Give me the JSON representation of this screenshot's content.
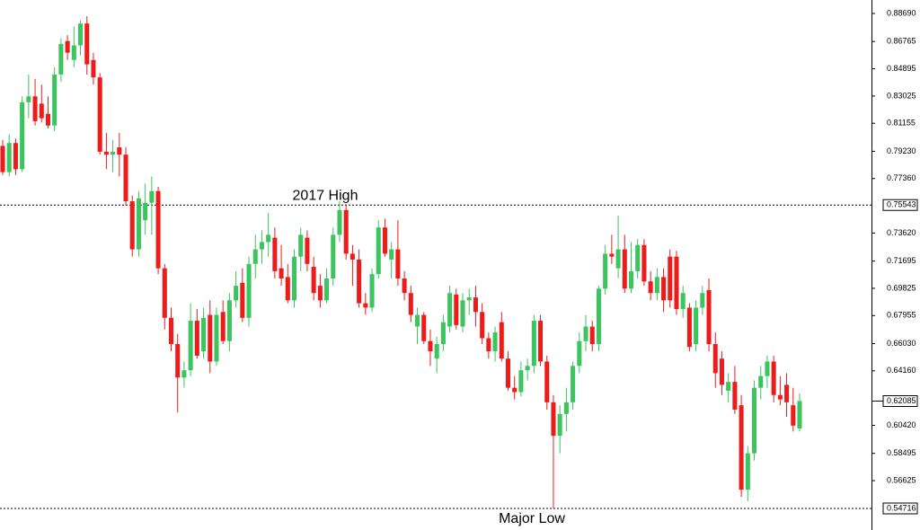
{
  "chart_data": {
    "type": "candlestick",
    "up_color": "#3cc45e",
    "down_color": "#ee1b1b",
    "ylim": [
      0.53236,
      0.89615
    ],
    "yticks": [
      {
        "value": 0.8869,
        "label": "0.88690"
      },
      0.86765,
      0.84895,
      0.83025,
      0.81155,
      {
        "value": 0.7923,
        "label": "0.79230"
      },
      {
        "value": 0.7736,
        "label": "0.77360"
      },
      {
        "value": 0.7362,
        "label": "0.73620"
      },
      0.71695,
      0.69825,
      0.67955,
      {
        "value": 0.6603,
        "label": "0.66030"
      },
      {
        "value": 0.6416,
        "label": "0.64160"
      },
      {
        "value": 0.6042,
        "label": "0.60420"
      },
      0.58495,
      0.56625
    ],
    "levels": [
      {
        "text": "2017 High",
        "value": 0.75543
      },
      {
        "text": "Major Low",
        "value": 0.54716
      }
    ],
    "last_price": 0.62085,
    "open": [
      0.796,
      0.778,
      0.798,
      0.78,
      0.826,
      0.83,
      0.825,
      0.818,
      0.81,
      0.845,
      0.868,
      0.855,
      0.865,
      0.88,
      0.855,
      0.843,
      0.792,
      0.79,
      0.795,
      0.79,
      0.758,
      0.725,
      0.745,
      0.757,
      0.765,
      0.712,
      0.678,
      0.66,
      0.637,
      0.642,
      0.676,
      0.655,
      0.68,
      0.648,
      0.682,
      0.662,
      0.69,
      0.702,
      0.678,
      0.715,
      0.725,
      0.73,
      0.733,
      0.712,
      0.706,
      0.69,
      0.72,
      0.733,
      0.713,
      0.7,
      0.69,
      0.705,
      0.735,
      0.752,
      0.722,
      0.718,
      0.688,
      0.685,
      0.708,
      0.74,
      0.718,
      0.725,
      0.705,
      0.695,
      0.672,
      0.68,
      0.662,
      0.65,
      0.66,
      0.672,
      0.694,
      0.672,
      0.69,
      0.692,
      0.682,
      0.664,
      0.655,
      0.675,
      0.65,
      0.63,
      0.627,
      0.642,
      0.645,
      0.676,
      0.648,
      0.62,
      0.597,
      0.612,
      0.62,
      0.645,
      0.662,
      0.672,
      0.66,
      0.698,
      0.722,
      0.712,
      0.725,
      0.698,
      0.71,
      0.728,
      0.703,
      0.695,
      0.706,
      0.72,
      0.72,
      0.684,
      0.685,
      0.66,
      0.685,
      0.697,
      0.66,
      0.65,
      0.628,
      0.634,
      0.618,
      0.56,
      0.585,
      0.63,
      0.638,
      0.648,
      0.625,
      0.632,
      0.618,
      0.602
    ],
    "high": [
      0.8,
      0.804,
      0.801,
      0.83,
      0.845,
      0.842,
      0.838,
      0.83,
      0.85,
      0.87,
      0.872,
      0.878,
      0.882,
      0.885,
      0.86,
      0.846,
      0.805,
      0.8,
      0.805,
      0.795,
      0.762,
      0.765,
      0.77,
      0.775,
      0.768,
      0.715,
      0.685,
      0.667,
      0.648,
      0.688,
      0.684,
      0.685,
      0.69,
      0.685,
      0.69,
      0.695,
      0.71,
      0.712,
      0.72,
      0.735,
      0.738,
      0.75,
      0.74,
      0.728,
      0.715,
      0.725,
      0.74,
      0.738,
      0.72,
      0.708,
      0.712,
      0.74,
      0.758,
      0.756,
      0.728,
      0.725,
      0.695,
      0.712,
      0.745,
      0.746,
      0.73,
      0.745,
      0.71,
      0.7,
      0.685,
      0.682,
      0.67,
      0.665,
      0.68,
      0.7,
      0.698,
      0.695,
      0.698,
      0.7,
      0.688,
      0.668,
      0.672,
      0.682,
      0.655,
      0.638,
      0.648,
      0.65,
      0.68,
      0.68,
      0.652,
      0.625,
      0.618,
      0.63,
      0.648,
      0.668,
      0.68,
      0.676,
      0.7,
      0.728,
      0.735,
      0.748,
      0.735,
      0.73,
      0.732,
      0.732,
      0.71,
      0.712,
      0.712,
      0.725,
      0.724,
      0.7,
      0.688,
      0.69,
      0.7,
      0.705,
      0.668,
      0.655,
      0.64,
      0.645,
      0.625,
      0.59,
      0.635,
      0.645,
      0.652,
      0.652,
      0.638,
      0.64,
      0.63,
      0.626
    ],
    "low": [
      0.776,
      0.775,
      0.776,
      0.778,
      0.815,
      0.81,
      0.812,
      0.808,
      0.806,
      0.84,
      0.855,
      0.85,
      0.858,
      0.845,
      0.838,
      0.79,
      0.78,
      0.778,
      0.775,
      0.755,
      0.72,
      0.72,
      0.735,
      0.735,
      0.708,
      0.67,
      0.655,
      0.613,
      0.63,
      0.638,
      0.65,
      0.65,
      0.64,
      0.645,
      0.66,
      0.655,
      0.685,
      0.675,
      0.672,
      0.705,
      0.715,
      0.72,
      0.705,
      0.7,
      0.688,
      0.685,
      0.71,
      0.71,
      0.69,
      0.685,
      0.688,
      0.7,
      0.73,
      0.718,
      0.7,
      0.685,
      0.68,
      0.682,
      0.705,
      0.72,
      0.705,
      0.7,
      0.69,
      0.675,
      0.66,
      0.66,
      0.645,
      0.64,
      0.655,
      0.668,
      0.67,
      0.668,
      0.68,
      0.672,
      0.66,
      0.65,
      0.648,
      0.648,
      0.628,
      0.622,
      0.624,
      0.635,
      0.64,
      0.645,
      0.615,
      0.547,
      0.585,
      0.6,
      0.615,
      0.64,
      0.655,
      0.655,
      0.655,
      0.694,
      0.715,
      0.705,
      0.695,
      0.695,
      0.705,
      0.7,
      0.69,
      0.69,
      0.682,
      0.685,
      0.68,
      0.678,
      0.655,
      0.655,
      0.68,
      0.655,
      0.63,
      0.625,
      0.62,
      0.612,
      0.555,
      0.552,
      0.58,
      0.622,
      0.63,
      0.62,
      0.618,
      0.61,
      0.6,
      0.6
    ],
    "close": [
      0.778,
      0.798,
      0.78,
      0.826,
      0.83,
      0.813,
      0.815,
      0.81,
      0.845,
      0.866,
      0.86,
      0.865,
      0.88,
      0.852,
      0.843,
      0.792,
      0.79,
      0.792,
      0.79,
      0.758,
      0.725,
      0.76,
      0.757,
      0.765,
      0.712,
      0.678,
      0.66,
      0.637,
      0.642,
      0.676,
      0.652,
      0.678,
      0.648,
      0.68,
      0.662,
      0.69,
      0.7,
      0.678,
      0.715,
      0.725,
      0.73,
      0.735,
      0.71,
      0.705,
      0.69,
      0.72,
      0.735,
      0.715,
      0.695,
      0.69,
      0.705,
      0.735,
      0.752,
      0.722,
      0.718,
      0.688,
      0.685,
      0.708,
      0.74,
      0.722,
      0.725,
      0.705,
      0.695,
      0.68,
      0.68,
      0.662,
      0.655,
      0.66,
      0.675,
      0.695,
      0.673,
      0.69,
      0.692,
      0.682,
      0.664,
      0.655,
      0.668,
      0.65,
      0.63,
      0.627,
      0.642,
      0.645,
      0.676,
      0.648,
      0.62,
      0.597,
      0.612,
      0.62,
      0.645,
      0.662,
      0.672,
      0.66,
      0.698,
      0.722,
      0.72,
      0.725,
      0.698,
      0.71,
      0.728,
      0.703,
      0.695,
      0.706,
      0.69,
      0.69,
      0.684,
      0.695,
      0.658,
      0.685,
      0.695,
      0.66,
      0.64,
      0.632,
      0.634,
      0.615,
      0.56,
      0.585,
      0.63,
      0.638,
      0.648,
      0.625,
      0.622,
      0.62,
      0.604,
      0.6209
    ]
  }
}
